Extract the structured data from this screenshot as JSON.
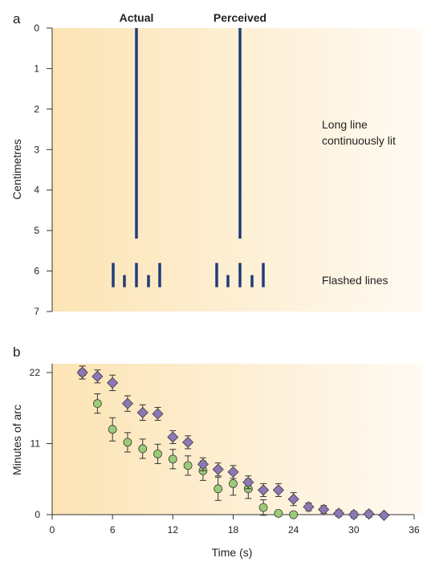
{
  "panel_a": {
    "letter": "a",
    "actual_label": "Actual",
    "perceived_label": "Perceived",
    "long_line_label_1": "Long line",
    "long_line_label_2": "continuously lit",
    "flashed_label": "Flashed lines",
    "ylabel": "Centimetres"
  },
  "panel_b": {
    "letter": "b",
    "xlabel": "Time (s)",
    "ylabel": "Minutes of arc"
  },
  "colors": {
    "bars": "#1f3d7a",
    "green": "#9ccc78",
    "purple": "#8c78b4",
    "axis": "#333333",
    "bg_left": "#fce4b4",
    "bg_right": "#fffaf2"
  },
  "chart_data": [
    {
      "type": "stimulus-diagram",
      "ylabel": "Centimetres",
      "y_ticks": [
        0,
        1,
        2,
        3,
        4,
        5,
        6,
        7
      ],
      "ylim": [
        0,
        7
      ],
      "long_line": {
        "from": 0,
        "to": 5.2
      },
      "flashed_lines": {
        "from": 5.8,
        "heights": [
          0.6,
          0.3,
          0.6,
          0.3,
          0.6
        ]
      },
      "columns": [
        "Actual",
        "Perceived"
      ]
    },
    {
      "type": "scatter",
      "xlabel": "Time (s)",
      "ylabel": "Minutes of arc",
      "xlim": [
        0,
        36
      ],
      "ylim": [
        0,
        23
      ],
      "x_ticks": [
        0,
        6,
        12,
        18,
        24,
        30,
        36
      ],
      "y_ticks": [
        0,
        11,
        22
      ],
      "series": [
        {
          "marker": "diamond",
          "color": "#8c78b4",
          "points": [
            {
              "x": 3.0,
              "y": 22.0,
              "err": 1.0
            },
            {
              "x": 4.5,
              "y": 21.4,
              "err": 1.0
            },
            {
              "x": 6.0,
              "y": 20.4,
              "err": 1.2
            },
            {
              "x": 7.5,
              "y": 17.2,
              "err": 1.2
            },
            {
              "x": 9.0,
              "y": 15.8,
              "err": 1.2
            },
            {
              "x": 10.5,
              "y": 15.6,
              "err": 1.0
            },
            {
              "x": 12.0,
              "y": 12.0,
              "err": 1.0
            },
            {
              "x": 13.5,
              "y": 11.2,
              "err": 1.0
            },
            {
              "x": 15.0,
              "y": 7.8,
              "err": 1.0
            },
            {
              "x": 16.5,
              "y": 7.0,
              "err": 1.0
            },
            {
              "x": 18.0,
              "y": 6.6,
              "err": 1.0
            },
            {
              "x": 19.5,
              "y": 5.0,
              "err": 1.0
            },
            {
              "x": 21.0,
              "y": 3.8,
              "err": 1.0
            },
            {
              "x": 22.5,
              "y": 3.8,
              "err": 1.0
            },
            {
              "x": 24.0,
              "y": 2.4,
              "err": 1.0
            },
            {
              "x": 25.5,
              "y": 1.2,
              "err": 0.6
            },
            {
              "x": 27.0,
              "y": 0.8,
              "err": 0.6
            },
            {
              "x": 28.5,
              "y": 0.2,
              "err": 0.5
            },
            {
              "x": 30.0,
              "y": 0.0,
              "err": 0.5
            },
            {
              "x": 31.5,
              "y": 0.1,
              "err": 0.5
            },
            {
              "x": 33.0,
              "y": -0.1,
              "err": 0.3
            }
          ]
        },
        {
          "marker": "circle",
          "color": "#9ccc78",
          "points": [
            {
              "x": 3.0,
              "y": 22.0,
              "err": 1.0
            },
            {
              "x": 4.5,
              "y": 17.2,
              "err": 1.5
            },
            {
              "x": 6.0,
              "y": 13.2,
              "err": 1.8
            },
            {
              "x": 7.5,
              "y": 11.2,
              "err": 1.5
            },
            {
              "x": 9.0,
              "y": 10.2,
              "err": 1.5
            },
            {
              "x": 10.5,
              "y": 9.4,
              "err": 1.5
            },
            {
              "x": 12.0,
              "y": 8.6,
              "err": 1.5
            },
            {
              "x": 13.5,
              "y": 7.6,
              "err": 1.5
            },
            {
              "x": 15.0,
              "y": 6.8,
              "err": 1.5
            },
            {
              "x": 16.5,
              "y": 4.0,
              "err": 1.8
            },
            {
              "x": 18.0,
              "y": 4.8,
              "err": 1.8
            },
            {
              "x": 19.5,
              "y": 4.0,
              "err": 1.5
            },
            {
              "x": 21.0,
              "y": 1.1,
              "err": 1.2
            },
            {
              "x": 22.5,
              "y": 0.2,
              "err": 0.4
            },
            {
              "x": 24.0,
              "y": 0.0,
              "err": 0.3
            }
          ]
        }
      ]
    }
  ]
}
